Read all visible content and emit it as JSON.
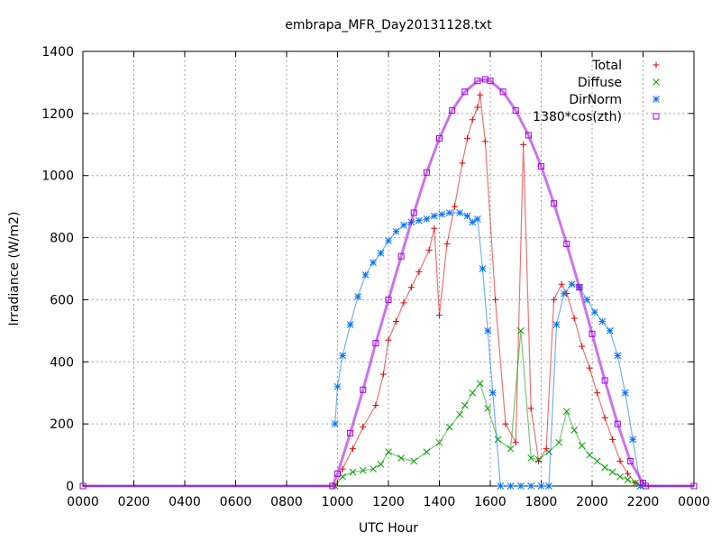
{
  "chart_data": {
    "type": "scatter",
    "title": "embrapa_MFR_Day20131128.txt",
    "xlabel": "UTC Hour",
    "ylabel": "Irradiance (W/m2)",
    "xlim": [
      0,
      24
    ],
    "ylim": [
      0,
      1400
    ],
    "x_ticks": [
      0,
      2,
      4,
      6,
      8,
      10,
      12,
      14,
      16,
      18,
      20,
      22,
      24
    ],
    "x_tick_labels": [
      "0000",
      "0200",
      "0400",
      "0600",
      "0800",
      "1000",
      "1200",
      "1400",
      "1600",
      "1800",
      "2000",
      "2200",
      "0000"
    ],
    "y_ticks": [
      0,
      200,
      400,
      600,
      800,
      1000,
      1200,
      1400
    ],
    "y_tick_labels": [
      "0",
      "200",
      "400",
      "600",
      "800",
      "1000",
      "1200",
      "1400"
    ],
    "grid": true,
    "legend_position": "top-right",
    "series": [
      {
        "name": "Total",
        "color": "#e00000",
        "marker": "plus",
        "x": [
          9.9,
          10.2,
          10.6,
          11.0,
          11.5,
          11.8,
          12.0,
          12.3,
          12.6,
          12.9,
          13.2,
          13.6,
          13.8,
          14.0,
          14.3,
          14.6,
          14.9,
          15.1,
          15.3,
          15.5,
          15.6,
          15.8,
          16.2,
          16.6,
          17.0,
          17.3,
          17.6,
          17.9,
          18.2,
          18.5,
          18.8,
          19.0,
          19.3,
          19.6,
          19.9,
          20.2,
          20.5,
          20.8,
          21.1,
          21.4,
          21.7,
          21.9
        ],
        "y": [
          0,
          55,
          120,
          190,
          260,
          360,
          470,
          530,
          590,
          640,
          690,
          760,
          830,
          550,
          780,
          900,
          1040,
          1120,
          1180,
          1220,
          1260,
          1110,
          600,
          200,
          140,
          1100,
          250,
          80,
          120,
          600,
          650,
          620,
          540,
          450,
          380,
          300,
          220,
          150,
          80,
          40,
          10,
          0
        ]
      },
      {
        "name": "Diffuse",
        "color": "#00a000",
        "marker": "cross",
        "x": [
          9.9,
          10.2,
          10.6,
          11.0,
          11.4,
          11.7,
          12.0,
          12.5,
          13.0,
          13.5,
          14.0,
          14.4,
          14.8,
          15.0,
          15.3,
          15.6,
          15.9,
          16.3,
          16.8,
          17.2,
          17.6,
          17.9,
          18.3,
          18.7,
          19.0,
          19.3,
          19.6,
          19.9,
          20.2,
          20.5,
          20.8,
          21.1,
          21.4,
          21.7,
          21.9
        ],
        "y": [
          0,
          30,
          45,
          50,
          55,
          70,
          110,
          90,
          80,
          110,
          140,
          190,
          230,
          260,
          300,
          330,
          250,
          150,
          120,
          500,
          90,
          85,
          110,
          140,
          240,
          180,
          130,
          100,
          80,
          60,
          45,
          30,
          20,
          10,
          0
        ]
      },
      {
        "name": "DirNorm",
        "color": "#0070ff",
        "marker": "star",
        "x": [
          9.9,
          10.0,
          10.2,
          10.5,
          10.8,
          11.1,
          11.4,
          11.7,
          12.0,
          12.3,
          12.6,
          12.9,
          13.2,
          13.5,
          13.8,
          14.1,
          14.4,
          14.8,
          15.1,
          15.3,
          15.5,
          15.7,
          15.9,
          16.1,
          16.4,
          16.8,
          17.2,
          17.6,
          18.0,
          18.3,
          18.6,
          18.9,
          19.2,
          19.5,
          19.8,
          20.1,
          20.4,
          20.7,
          21.0,
          21.3,
          21.6,
          21.9
        ],
        "y": [
          200,
          320,
          420,
          520,
          610,
          680,
          720,
          750,
          790,
          820,
          840,
          850,
          855,
          860,
          870,
          875,
          880,
          880,
          870,
          850,
          860,
          700,
          500,
          300,
          0,
          0,
          0,
          0,
          0,
          0,
          520,
          620,
          650,
          640,
          600,
          560,
          530,
          500,
          420,
          300,
          150,
          0
        ]
      },
      {
        "name": "1380*cos(zth)",
        "color": "#a000e0",
        "marker": "square",
        "x": [
          0,
          9.8,
          10.0,
          10.5,
          11.0,
          11.5,
          12.0,
          12.5,
          13.0,
          13.5,
          14.0,
          14.5,
          15.0,
          15.5,
          15.8,
          16.0,
          16.5,
          17.0,
          17.5,
          18.0,
          18.5,
          19.0,
          19.5,
          20.0,
          20.5,
          21.0,
          21.5,
          22.0,
          22.1,
          24.0
        ],
        "y": [
          0,
          0,
          40,
          170,
          310,
          460,
          600,
          740,
          880,
          1010,
          1120,
          1210,
          1270,
          1305,
          1310,
          1305,
          1270,
          1210,
          1130,
          1030,
          910,
          780,
          640,
          490,
          340,
          200,
          80,
          10,
          0,
          0
        ]
      }
    ]
  }
}
